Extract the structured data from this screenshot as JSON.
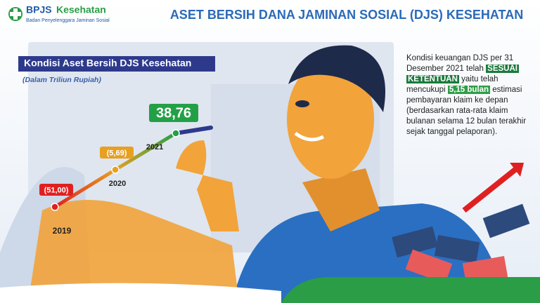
{
  "header": {
    "logo_name": "BPJS",
    "logo_name_2": "Kesehatan",
    "logo_tagline": "Badan Penyelenggara Jaminan Sosial",
    "title": "ASET BERSIH DANA JAMINAN SOSIAL (DJS) KESEHATAN"
  },
  "chart_data": {
    "type": "line",
    "title": "Kondisi Aset Bersih DJS Kesehatan",
    "subtitle": "(Dalam Triliun Rupiah)",
    "categories": [
      "2019",
      "2020",
      "2021"
    ],
    "values": [
      -51.0,
      -5.69,
      38.76
    ],
    "value_labels": [
      "(51,00)",
      "(5,69)",
      "38,76"
    ],
    "colors": [
      "#e02020",
      "#e8a020",
      "#23a046"
    ]
  },
  "description": {
    "segments": [
      {
        "text": "Kondisi keuangan DJS per 31 Desember 2021 telah "
      },
      {
        "text": "SESUAI KETENTUAN",
        "highlight": true
      },
      {
        "text": " yaitu telah mencukupi "
      },
      {
        "text": "5,15 bulan",
        "highlight": true
      },
      {
        "text": " estimasi pembayaran klaim ke depan (berdasarkan rata-rata klaim bulanan selama 12 bulan terakhir sejak tanggal pelaporan)."
      }
    ]
  }
}
